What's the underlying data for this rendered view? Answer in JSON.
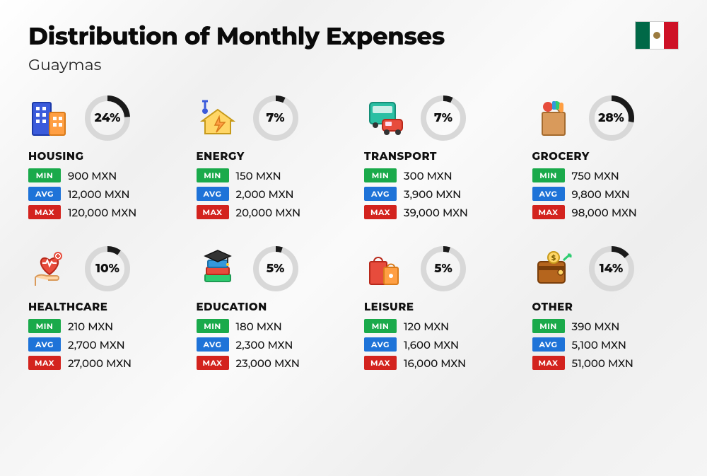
{
  "header": {
    "title": "Distribution of Monthly Expenses",
    "subtitle": "Guaymas",
    "flag_colors": {
      "left": "#006847",
      "center": "#ffffff",
      "right": "#ce1126"
    }
  },
  "labels": {
    "min": "MIN",
    "avg": "AVG",
    "max": "MAX"
  },
  "currency": "MXN",
  "donut": {
    "track_color": "#d8d8d8",
    "progress_color": "#1a1a1a",
    "stroke_width": 8,
    "radius": 28
  },
  "tag_colors": {
    "min": "#1aaa4b",
    "avg": "#1e73d8",
    "max": "#d3231e"
  },
  "categories": [
    {
      "key": "housing",
      "name": "HOUSING",
      "percent": 24,
      "min": "900 MXN",
      "avg": "12,000 MXN",
      "max": "120,000 MXN",
      "icon": "buildings"
    },
    {
      "key": "energy",
      "name": "ENERGY",
      "percent": 7,
      "min": "150 MXN",
      "avg": "2,000 MXN",
      "max": "20,000 MXN",
      "icon": "energy-house"
    },
    {
      "key": "transport",
      "name": "TRANSPORT",
      "percent": 7,
      "min": "300 MXN",
      "avg": "3,900 MXN",
      "max": "39,000 MXN",
      "icon": "bus-car"
    },
    {
      "key": "grocery",
      "name": "GROCERY",
      "percent": 28,
      "min": "750 MXN",
      "avg": "9,800 MXN",
      "max": "98,000 MXN",
      "icon": "grocery-bag"
    },
    {
      "key": "healthcare",
      "name": "HEALTHCARE",
      "percent": 10,
      "min": "210 MXN",
      "avg": "2,700 MXN",
      "max": "27,000 MXN",
      "icon": "heart-hand"
    },
    {
      "key": "education",
      "name": "EDUCATION",
      "percent": 5,
      "min": "180 MXN",
      "avg": "2,300 MXN",
      "max": "23,000 MXN",
      "icon": "books-cap"
    },
    {
      "key": "leisure",
      "name": "LEISURE",
      "percent": 5,
      "min": "120 MXN",
      "avg": "1,600 MXN",
      "max": "16,000 MXN",
      "icon": "shopping-bags"
    },
    {
      "key": "other",
      "name": "OTHER",
      "percent": 14,
      "min": "390 MXN",
      "avg": "5,100 MXN",
      "max": "51,000 MXN",
      "icon": "wallet-arrow"
    }
  ]
}
